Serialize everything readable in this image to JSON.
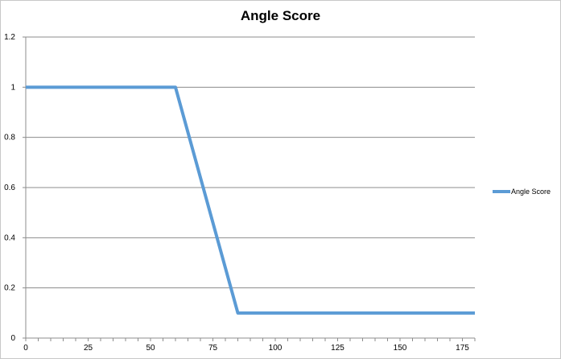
{
  "chart_data": {
    "type": "line",
    "title": "Angle Score",
    "xlabel": "",
    "ylabel": "",
    "x": [
      0,
      60,
      85,
      180
    ],
    "series": [
      {
        "name": "Angle Score",
        "values": [
          1,
          1,
          0.1,
          0.1
        ]
      }
    ],
    "xlim": [
      0,
      180
    ],
    "ylim": [
      0,
      1.2
    ],
    "x_ticks": [
      "0",
      "25",
      "50",
      "75",
      "100",
      "125",
      "150",
      "175"
    ],
    "y_ticks": [
      "0",
      "0.2",
      "0.4",
      "0.6",
      "0.8",
      "1",
      "1.2"
    ],
    "grid": "horizontal",
    "legend_position": "right",
    "colors": {
      "series": "#5b9bd5",
      "grid": "#8c8c8c"
    }
  }
}
